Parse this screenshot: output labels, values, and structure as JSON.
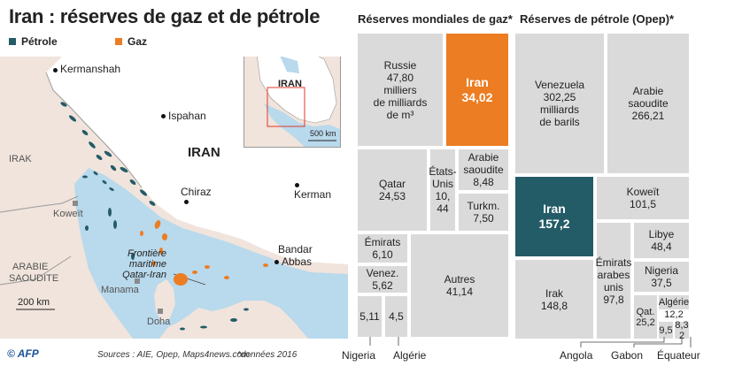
{
  "title": "Iran : réserves de gaz et de pétrole",
  "legend": [
    {
      "label": "Pétrole",
      "color": "#235b66"
    },
    {
      "label": "Gaz",
      "color": "#ec7d22"
    }
  ],
  "map": {
    "labels": {
      "iran": "IRAN",
      "irak": "IRAK",
      "koweit": "Koweït",
      "arabie_1": "ARABIE",
      "arabie_2": "SAOUDITE",
      "kermanshah": "Kermanshah",
      "ispahan": "Ispahan",
      "chiraz": "Chiraz",
      "kerman": "Kerman",
      "bandar_1": "Bandar",
      "bandar_2": "Abbas",
      "frontiere_1": "Frontière",
      "frontiere_2": "maritime",
      "frontiere_3": "Qatar-Iran",
      "manama": "Manama",
      "doha": "Doha",
      "scale": "200 km"
    },
    "inset": {
      "label": "IRAN",
      "scale": "500 km"
    }
  },
  "gas": {
    "title": "Réserves mondiales de gaz*",
    "tiles": {
      "russie": [
        "Russie",
        "47,80",
        "milliers",
        "de milliards",
        "de m³"
      ],
      "iran": [
        "Iran",
        "34,02"
      ],
      "qatar": [
        "Qatar",
        "24,53"
      ],
      "etats_unis": [
        "États-",
        "Unis",
        "10, 44"
      ],
      "arabie": [
        "Arabie",
        "saoudite",
        "8,48"
      ],
      "turkm": [
        "Turkm.",
        "7,50"
      ],
      "emirats": [
        "Émirats",
        "6,10"
      ],
      "venez": [
        "Venez.",
        "5,62"
      ],
      "autres": [
        "Autres",
        "41,14"
      ],
      "nigeria": [
        "5,11"
      ],
      "algerie": [
        "4,5"
      ]
    },
    "external": {
      "nigeria": "Nigeria",
      "algerie": "Algérie"
    }
  },
  "oil": {
    "title": "Réserves de pétrole (Opep)*",
    "tiles": {
      "venezuela": [
        "Venezuela",
        "302,25",
        "milliards",
        "de barils"
      ],
      "arabie": [
        "Arabie",
        "saoudite",
        "266,21"
      ],
      "iran": [
        "Iran",
        "157,2"
      ],
      "koweit": [
        "Koweït",
        "101,5"
      ],
      "libye": [
        "Libye",
        "48,4"
      ],
      "irak": [
        "Irak",
        "148,8"
      ],
      "emirats": [
        "Émirats",
        "arabes",
        "unis",
        "97,8"
      ],
      "nigeria": [
        "Nigeria",
        "37,5"
      ],
      "algerie": [
        "Algérie",
        "12,2"
      ],
      "qatar": [
        "Qat.",
        "25,2"
      ],
      "angola": [
        "9,5"
      ],
      "equateur": [
        "8,3",
        "2"
      ]
    },
    "external": {
      "angola": "Angola",
      "gabon": "Gabon",
      "equateur": "Équateur"
    }
  },
  "footer": {
    "afp": "© AFP",
    "sources": "Sources : AIE, Opep, Maps4news.com",
    "note": "*données 2016"
  },
  "colors": {
    "oil": "#235b66",
    "gas": "#ec7d22",
    "sea": "#b9d9ec",
    "land": "#f0e4dc",
    "iran_land": "#ffffff",
    "tile": "#dadada"
  }
}
